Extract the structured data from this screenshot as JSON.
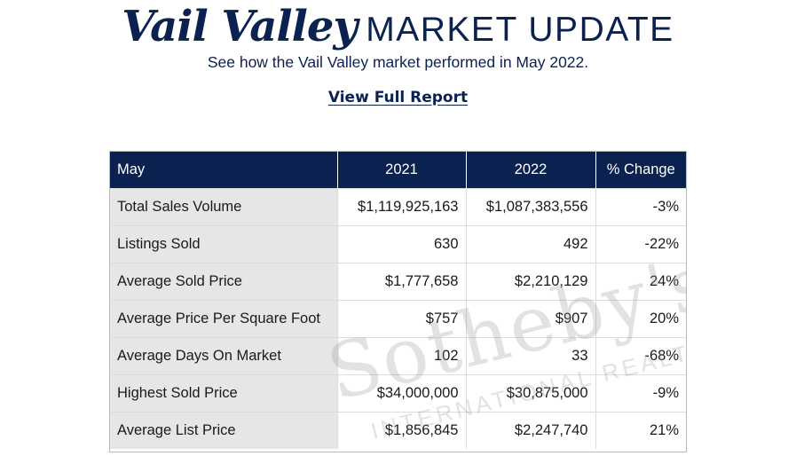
{
  "header": {
    "title_script": "Vail Valley",
    "title_caps": "MARKET UPDATE",
    "subtitle": "See how the Vail Valley market performed in May 2022.",
    "report_link": "View Full Report"
  },
  "table": {
    "headers": [
      "May",
      "2021",
      "2022",
      "% Change"
    ],
    "rows": [
      [
        "Total Sales Volume",
        "$1,119,925,163",
        "$1,087,383,556",
        "-3%"
      ],
      [
        "Listings Sold",
        "630",
        "492",
        "-22%"
      ],
      [
        "Average Sold Price",
        "$1,777,658",
        "$2,210,129",
        "24%"
      ],
      [
        "Average Price Per Square Foot",
        "$757",
        "$907",
        "20%"
      ],
      [
        "Average Days On Market",
        "102",
        "33",
        "-68%"
      ],
      [
        "Highest Sold Price",
        "$34,000,000",
        "$30,875,000",
        "-9%"
      ],
      [
        "Average List Price",
        "$1,856,845",
        "$2,247,740",
        "21%"
      ]
    ]
  },
  "watermark": {
    "brand": "Sotheby's",
    "tagline": "INTERNATIONAL REALTY"
  },
  "colors": {
    "navy": "#0b2150",
    "label_cell_bg": "#e4e4e6",
    "border": "#dcdcdc"
  }
}
